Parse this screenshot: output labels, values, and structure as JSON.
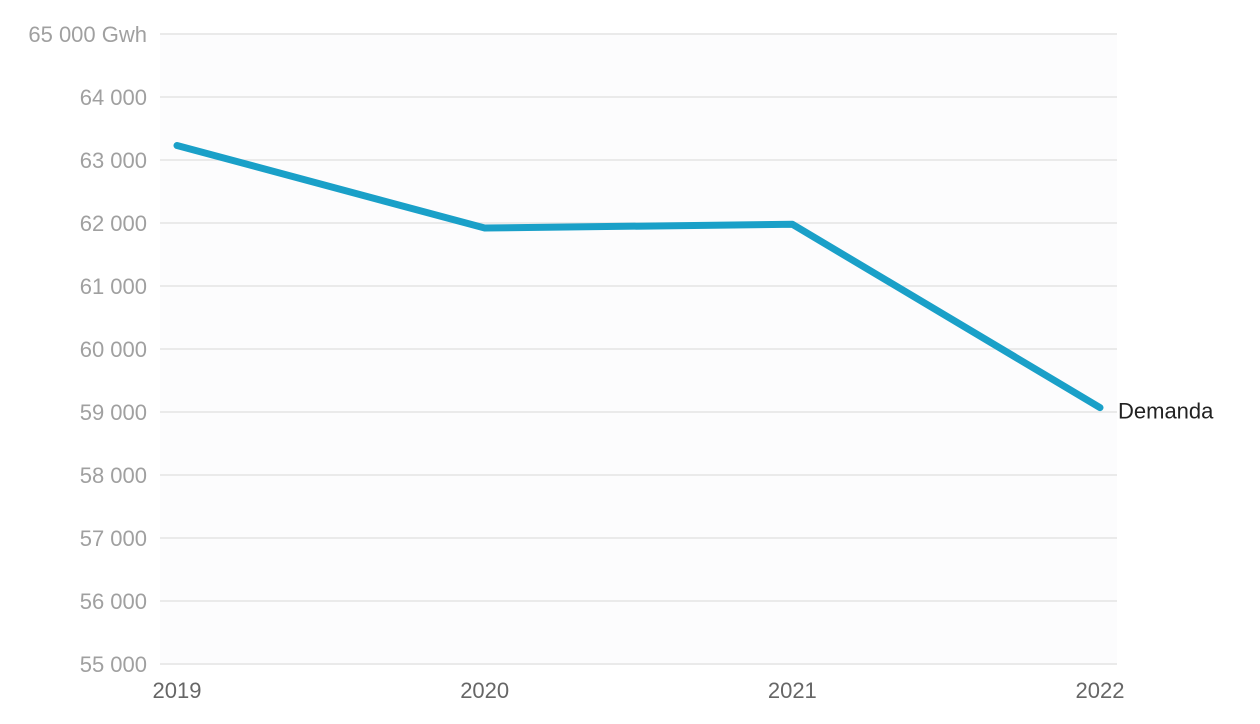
{
  "chart_data": {
    "type": "line",
    "title": "",
    "xlabel": "",
    "ylabel": "",
    "x": [
      "2019",
      "2020",
      "2021",
      "2022"
    ],
    "series": [
      {
        "name": "Demanda",
        "values": [
          63230,
          61920,
          61980,
          59070
        ],
        "color": "#1aa0c8"
      }
    ],
    "ylim": [
      55000,
      65000
    ],
    "y_ticks": [
      55000,
      56000,
      57000,
      58000,
      59000,
      60000,
      61000,
      62000,
      63000,
      64000,
      65000
    ],
    "y_tick_labels": [
      "55 000",
      "56 000",
      "57 000",
      "58 000",
      "59 000",
      "60 000",
      "61 000",
      "62 000",
      "63 000",
      "64 000",
      "65 000 Gwh"
    ],
    "grid": true,
    "colors": {
      "grid": "#e3e3e3",
      "line": "#1aa0c8",
      "y_tick_text": "#a0a0a0",
      "x_tick_text": "#666666",
      "label_text": "#222222",
      "plot_background": "#fcfcfd"
    }
  }
}
